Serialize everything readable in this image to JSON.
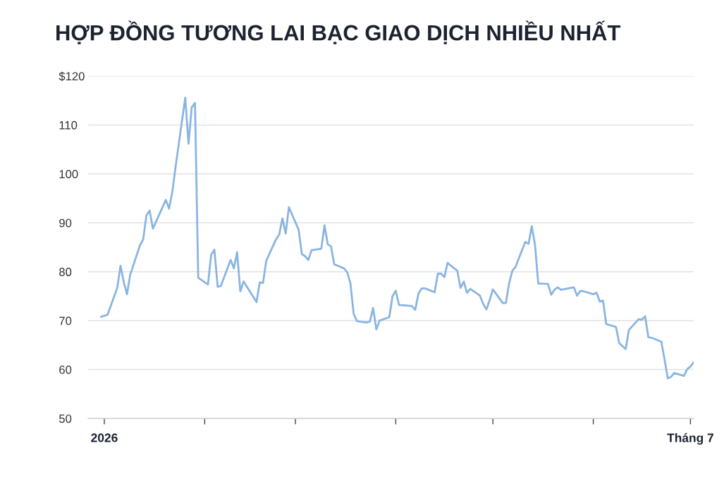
{
  "chart_data": {
    "type": "line",
    "title": "HỢP ĐỒNG TƯƠNG LAI BẠC GIAO DỊCH NHIỀU NHẤT",
    "x": [
      "2025-12-31",
      "2026-01-02",
      "2026-01-05",
      "2026-01-06",
      "2026-01-07",
      "2026-01-08",
      "2026-01-09",
      "2026-01-12",
      "2026-01-13",
      "2026-01-14",
      "2026-01-15",
      "2026-01-16",
      "2026-01-20",
      "2026-01-21",
      "2026-01-22",
      "2026-01-23",
      "2026-01-26",
      "2026-01-27",
      "2026-01-28",
      "2026-01-29",
      "2026-01-30",
      "2026-02-02",
      "2026-02-03",
      "2026-02-04",
      "2026-02-05",
      "2026-02-06",
      "2026-02-09",
      "2026-02-10",
      "2026-02-11",
      "2026-02-12",
      "2026-02-13",
      "2026-02-17",
      "2026-02-18",
      "2026-02-19",
      "2026-02-20",
      "2026-02-23",
      "2026-02-24",
      "2026-02-25",
      "2026-02-26",
      "2026-02-27",
      "2026-03-02",
      "2026-03-03",
      "2026-03-04",
      "2026-03-05",
      "2026-03-06",
      "2026-03-09",
      "2026-03-10",
      "2026-03-11",
      "2026-03-12",
      "2026-03-13",
      "2026-03-16",
      "2026-03-17",
      "2026-03-18",
      "2026-03-19",
      "2026-03-20",
      "2026-03-23",
      "2026-03-24",
      "2026-03-25",
      "2026-03-26",
      "2026-03-27",
      "2026-03-30",
      "2026-03-31",
      "2026-04-01",
      "2026-04-02",
      "2026-04-06",
      "2026-04-07",
      "2026-04-08",
      "2026-04-09",
      "2026-04-10",
      "2026-04-13",
      "2026-04-14",
      "2026-04-15",
      "2026-04-16",
      "2026-04-17",
      "2026-04-20",
      "2026-04-21",
      "2026-04-22",
      "2026-04-23",
      "2026-04-24",
      "2026-04-27",
      "2026-04-28",
      "2026-04-29",
      "2026-04-30",
      "2026-05-01",
      "2026-05-04",
      "2026-05-05",
      "2026-05-06",
      "2026-05-07",
      "2026-05-08",
      "2026-05-11",
      "2026-05-12",
      "2026-05-13",
      "2026-05-14",
      "2026-05-15",
      "2026-05-18",
      "2026-05-19",
      "2026-05-20",
      "2026-05-21",
      "2026-05-22",
      "2026-05-26",
      "2026-05-27",
      "2026-05-28",
      "2026-05-29",
      "2026-06-01",
      "2026-06-02",
      "2026-06-03",
      "2026-06-04",
      "2026-06-05",
      "2026-06-08",
      "2026-06-09",
      "2026-06-10",
      "2026-06-11",
      "2026-06-12",
      "2026-06-15",
      "2026-06-16",
      "2026-06-17",
      "2026-06-18",
      "2026-06-19",
      "2026-06-22",
      "2026-06-23",
      "2026-06-24",
      "2026-06-25",
      "2026-06-26",
      "2026-06-29",
      "2026-06-30",
      "2026-07-01",
      "2026-07-02"
    ],
    "values": [
      70.8,
      71.2,
      76.7,
      81.2,
      77.9,
      75.4,
      79.4,
      85.4,
      86.6,
      91.5,
      92.5,
      88.8,
      94.7,
      92.9,
      96.3,
      101.4,
      115.6,
      106.2,
      113.6,
      114.5,
      78.8,
      77.4,
      83.5,
      84.5,
      76.9,
      77.1,
      82.4,
      80.7,
      84.0,
      76.0,
      78.0,
      73.8,
      77.8,
      77.7,
      82.2,
      86.6,
      87.6,
      90.9,
      87.8,
      93.2,
      88.6,
      83.6,
      83.2,
      82.4,
      84.4,
      84.7,
      89.5,
      85.6,
      85.2,
      81.5,
      80.7,
      79.9,
      77.6,
      71.4,
      69.9,
      69.6,
      69.8,
      72.6,
      68.2,
      70.0,
      70.7,
      75.0,
      76.1,
      73.2,
      73.0,
      72.2,
      75.5,
      76.6,
      76.6,
      75.8,
      79.6,
      79.6,
      78.9,
      81.8,
      80.2,
      76.7,
      78.0,
      75.7,
      76.5,
      75.1,
      73.4,
      72.3,
      74.2,
      76.4,
      73.6,
      73.6,
      77.6,
      80.2,
      81.0,
      86.1,
      85.7,
      89.3,
      85.5,
      77.6,
      77.5,
      75.3,
      76.3,
      76.8,
      76.3,
      76.8,
      75.1,
      76.1,
      76.0,
      75.4,
      75.7,
      73.9,
      74.1,
      69.3,
      68.7,
      65.4,
      64.8,
      64.2,
      68.1,
      70.3,
      70.2,
      70.9,
      66.6,
      66.5,
      65.7,
      62.1,
      58.2,
      58.5,
      59.3,
      58.7,
      60.1,
      60.6,
      61.5
    ],
    "color": "#89b5e1",
    "line_style": "solid",
    "xlim": [
      "2025-12-27",
      "2026-07-02"
    ],
    "xticks": [
      {
        "value": "2026-01-01",
        "label": "2026"
      },
      {
        "value": "2026-02-01",
        "label": null
      },
      {
        "value": "2026-03-01",
        "label": null
      },
      {
        "value": "2026-04-01",
        "label": null
      },
      {
        "value": "2026-05-01",
        "label": null
      },
      {
        "value": "2026-06-01",
        "label": null
      },
      {
        "value": "2026-07-01",
        "label": "Tháng 7"
      }
    ],
    "ylim": [
      50,
      120
    ],
    "yticks": [
      50,
      60,
      70,
      80,
      90,
      100,
      110,
      {
        "value": 120,
        "label": "$120"
      }
    ],
    "grid": "y"
  }
}
